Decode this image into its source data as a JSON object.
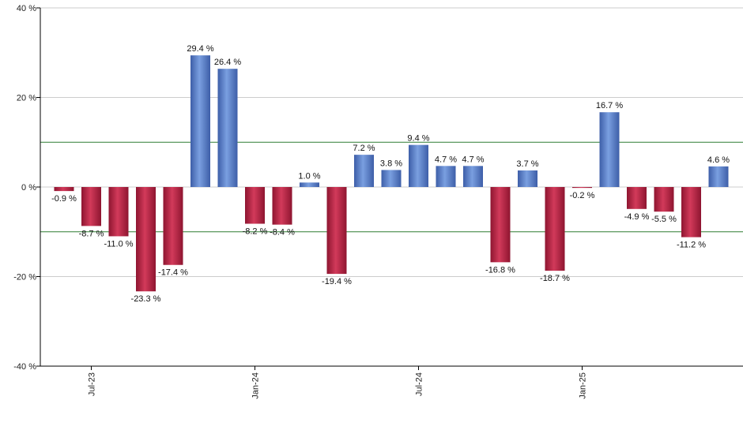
{
  "chart_data": {
    "type": "bar",
    "title": "",
    "xlabel": "",
    "ylabel": "",
    "ylim": [
      -40,
      40
    ],
    "y_ticks": [
      40,
      20,
      0,
      -20,
      -40
    ],
    "y_tick_suffix": " %",
    "grid": true,
    "reference_lines": [
      10,
      -10
    ],
    "x_tick_labels": [
      {
        "label": "Jul-23",
        "index": 1
      },
      {
        "label": "Jan-24",
        "index": 7
      },
      {
        "label": "Jul-24",
        "index": 13
      },
      {
        "label": "Jan-25",
        "index": 19
      }
    ],
    "values": [
      -0.9,
      -8.7,
      -11.0,
      -23.3,
      -17.4,
      29.4,
      26.4,
      -8.2,
      -8.4,
      1.0,
      -19.4,
      7.2,
      3.8,
      9.4,
      4.7,
      4.7,
      -16.8,
      3.7,
      -18.7,
      -0.2,
      16.7,
      -4.9,
      -5.5,
      -11.2,
      4.6
    ],
    "data_labels": [
      "-0.9 %",
      "-8.7 %",
      "-11.0 %",
      "-23.3 %",
      "-17.4 %",
      "29.4 %",
      "26.4 %",
      "-8.2 %",
      "-8.4 %",
      "1.0 %",
      "-19.4 %",
      "7.2 %",
      "3.8 %",
      "9.4 %",
      "4.7 %",
      "4.7 %",
      "-16.8 %",
      "3.7 %",
      "-18.7 %",
      "-0.2 %",
      "16.7 %",
      "-4.9 %",
      "-5.5 %",
      "-11.2 %",
      "4.6 %"
    ],
    "colors": {
      "positive": "#7a9fe0",
      "positive_dark": "#3d5ea8",
      "negative": "#d23a5a",
      "negative_dark": "#8e1530",
      "reference_line": "#2e7d32",
      "grid": "#cccccc",
      "axis": "#000000"
    }
  }
}
